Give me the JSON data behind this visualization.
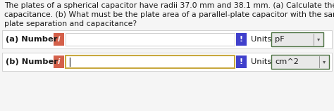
{
  "title_line1": "The plates of a spherical capacitor have radii 37.0 mm and 38.1 mm. (a) Calculate the",
  "title_line2": "capacitance. (b) What must be the plate area of a parallel-plate capacitor with the same",
  "title_line3": "plate separation and capacitance?",
  "row_a_label_normal": "(a) Number",
  "row_b_label_normal": "(b) Number",
  "units_label": "Units",
  "units_a_value": "pF",
  "units_b_value": "cm^2",
  "info_color": "#d4604a",
  "exclaim_color": "#4040cc",
  "bg_color": "#f5f5f5",
  "row_bg": "#ffffff",
  "input_box_color": "#ffffff",
  "units_box_color": "#e8e8e8",
  "text_color": "#1a1a1a",
  "input_border_b_color": "#c8a840",
  "row_border_color": "#cccccc",
  "units_border_color": "#4a7040",
  "font_size_title": 7.8,
  "font_size_row": 8.2
}
